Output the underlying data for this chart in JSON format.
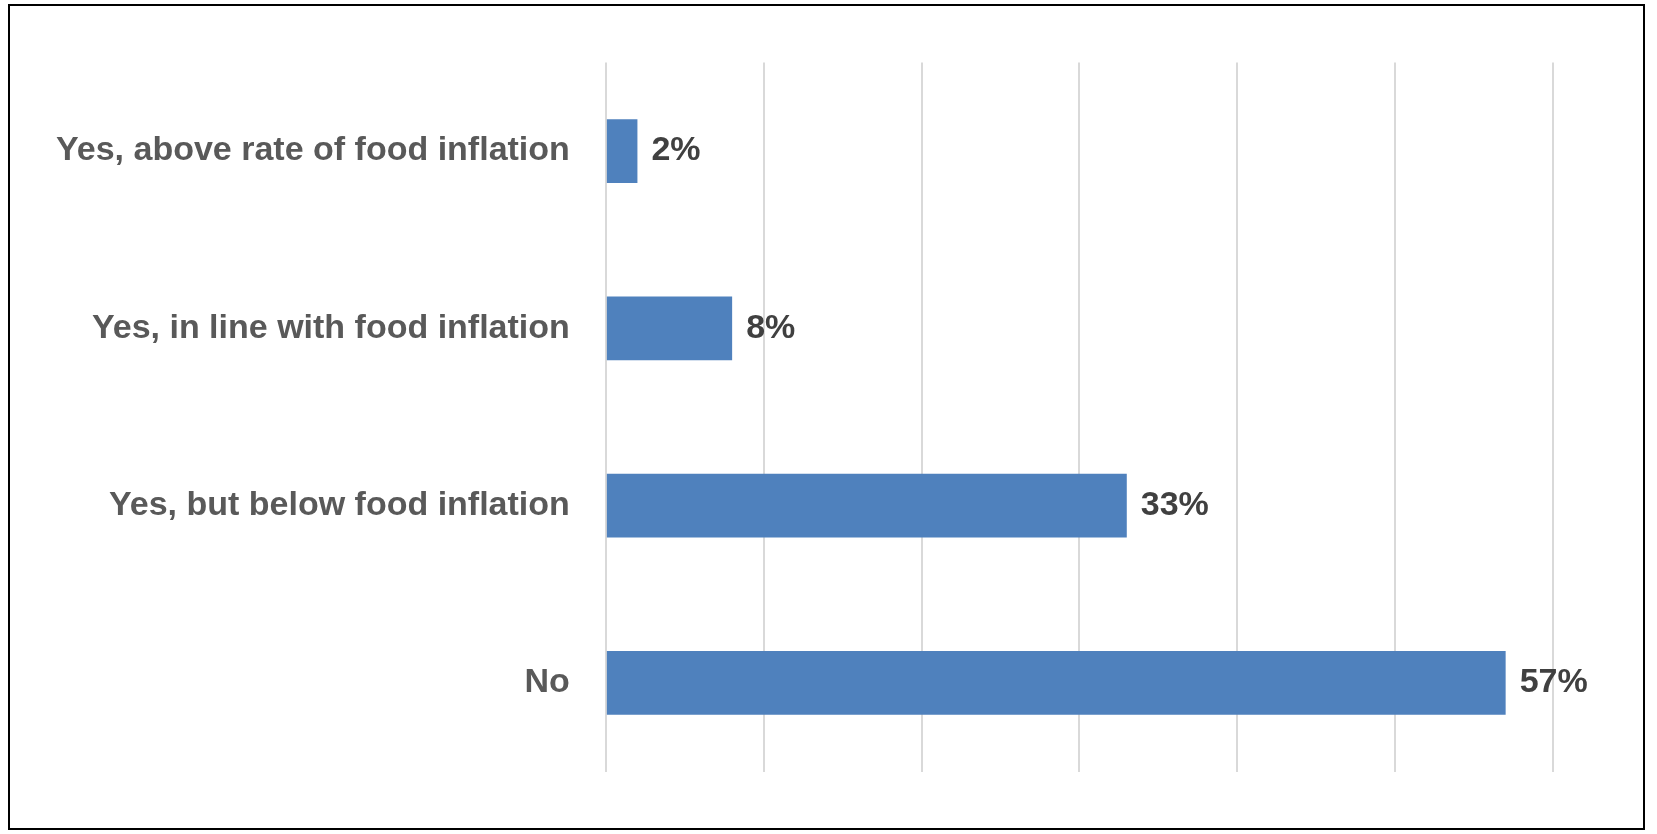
{
  "chart_data": {
    "type": "bar",
    "orientation": "horizontal",
    "categories": [
      "Yes, above rate of food inflation",
      "Yes, in line with food inflation",
      "Yes, but below food inflation",
      "No"
    ],
    "values": [
      2,
      8,
      33,
      57
    ],
    "color": "#4f81bd",
    "value_labels": [
      "2%",
      "8%",
      "33%",
      "57%"
    ],
    "grid": "x",
    "tick_labels": "y",
    "legend": false
  }
}
